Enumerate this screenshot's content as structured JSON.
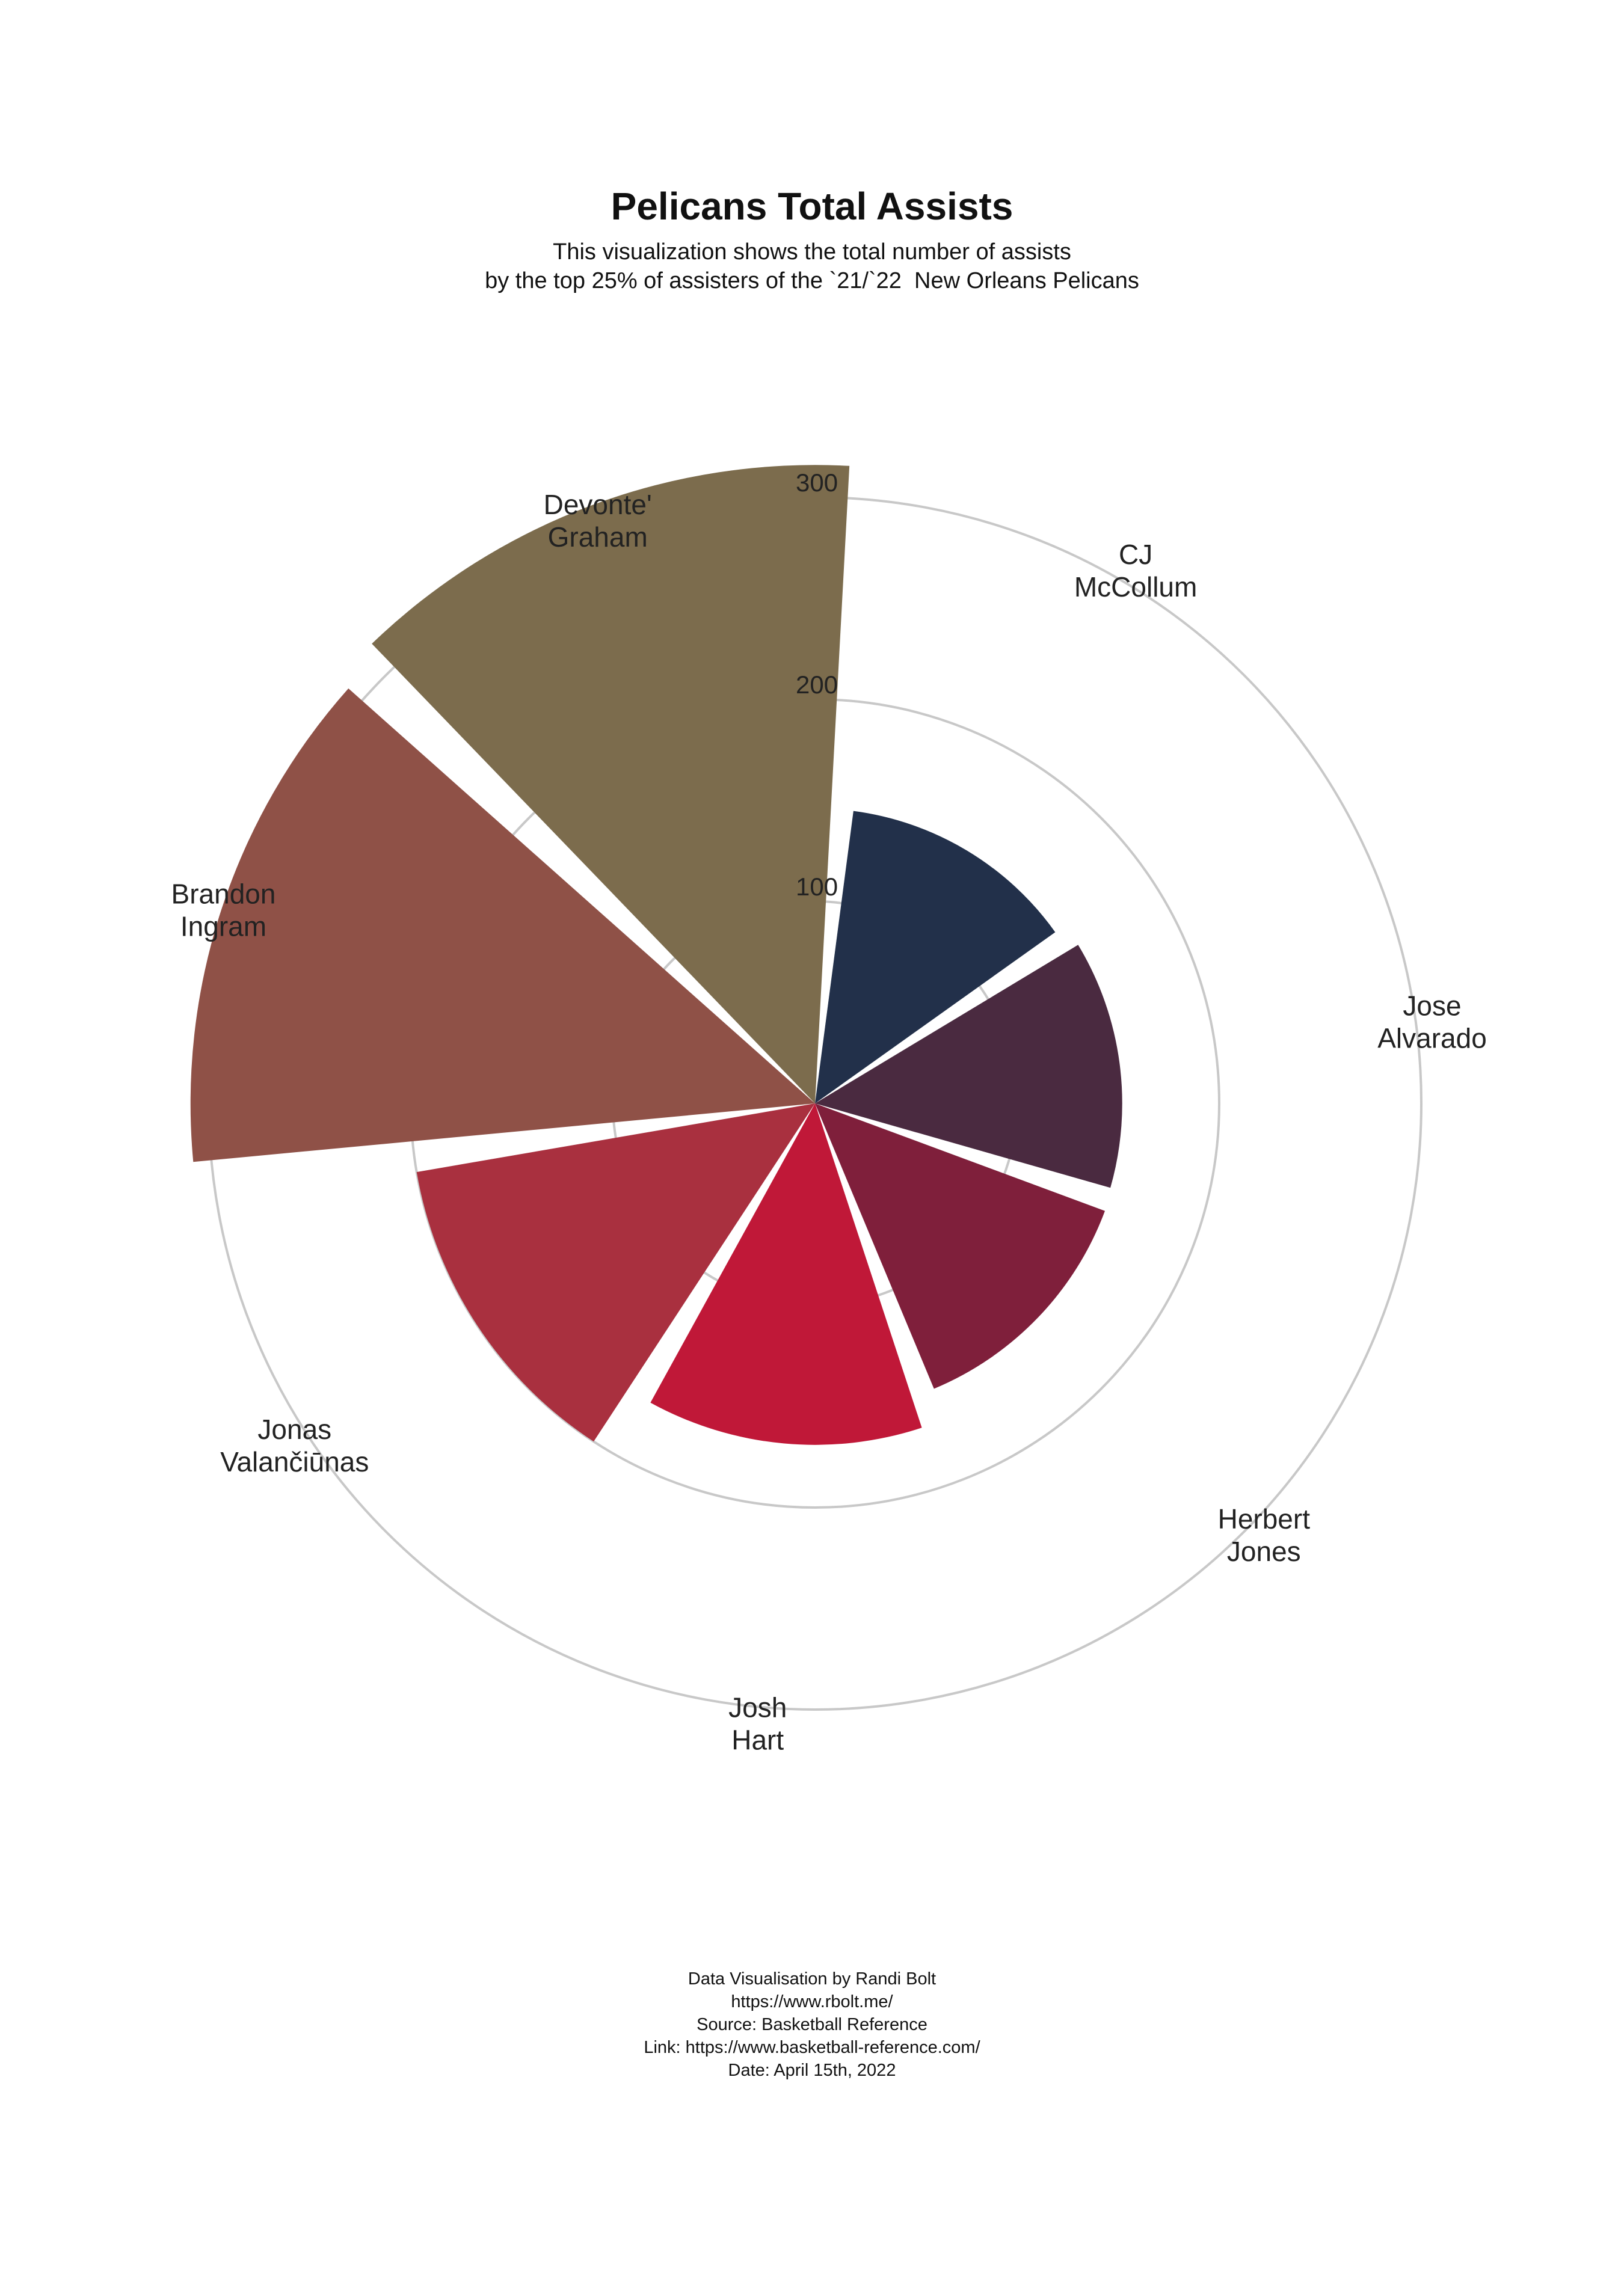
{
  "title": "Pelicans Total Assists",
  "subtitle": [
    "This visualization shows the total number of assists",
    "by the top 25% of assisters of the `21/`22  New Orleans Pelicans"
  ],
  "chart_data": {
    "type": "bar",
    "coordinate_system": "polar",
    "title": "Pelicans Total Assists",
    "categories": [
      [
        "CJ",
        "McCollum"
      ],
      [
        "Jose",
        "Alvarado"
      ],
      [
        "Herbert",
        "Jones"
      ],
      [
        "Josh",
        "Hart"
      ],
      [
        "Jonas",
        "Valančiūnas"
      ],
      [
        "Brandon",
        "Ingram"
      ],
      [
        "Devonte'",
        "Graham"
      ]
    ],
    "values": [
      146,
      152,
      153,
      169,
      200,
      309,
      316
    ],
    "colors": [
      "#22304A",
      "#4A2A40",
      "#7F1F3B",
      "#C01838",
      "#A9303F",
      "#8F5147",
      "#7C6C4D"
    ],
    "radial_ticks": [
      100,
      200,
      300
    ],
    "radial_max": 300,
    "grid": true,
    "legend": "none"
  },
  "footer": [
    "Data Visualisation by Randi Bolt",
    "https://www.rbolt.me/",
    "Source: Basketball Reference",
    "Link: https://www.basketball-reference.com/",
    "Date: April 15th, 2022"
  ]
}
